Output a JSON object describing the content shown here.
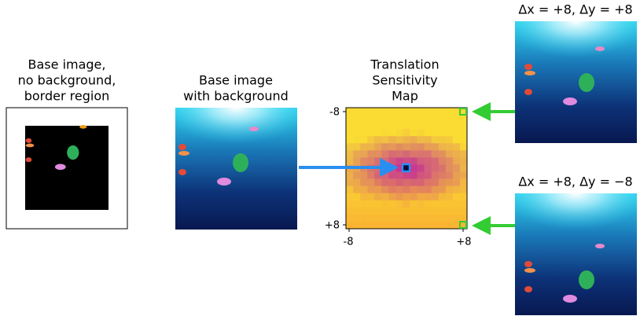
{
  "panels": [
    {
      "title": [
        "Base image,",
        "no background,",
        "border region"
      ]
    },
    {
      "title": [
        "Base image",
        "with background"
      ]
    },
    {
      "title": [
        "Translation",
        "Sensitivity",
        "Map"
      ],
      "y_ticks": [
        "-8",
        "+8"
      ],
      "x_ticks": [
        "-8",
        "+8"
      ]
    },
    {
      "title": [
        "Δx = +8, Δy = +8"
      ]
    },
    {
      "title": [
        "Δx = +8, Δy = −8"
      ]
    }
  ]
}
